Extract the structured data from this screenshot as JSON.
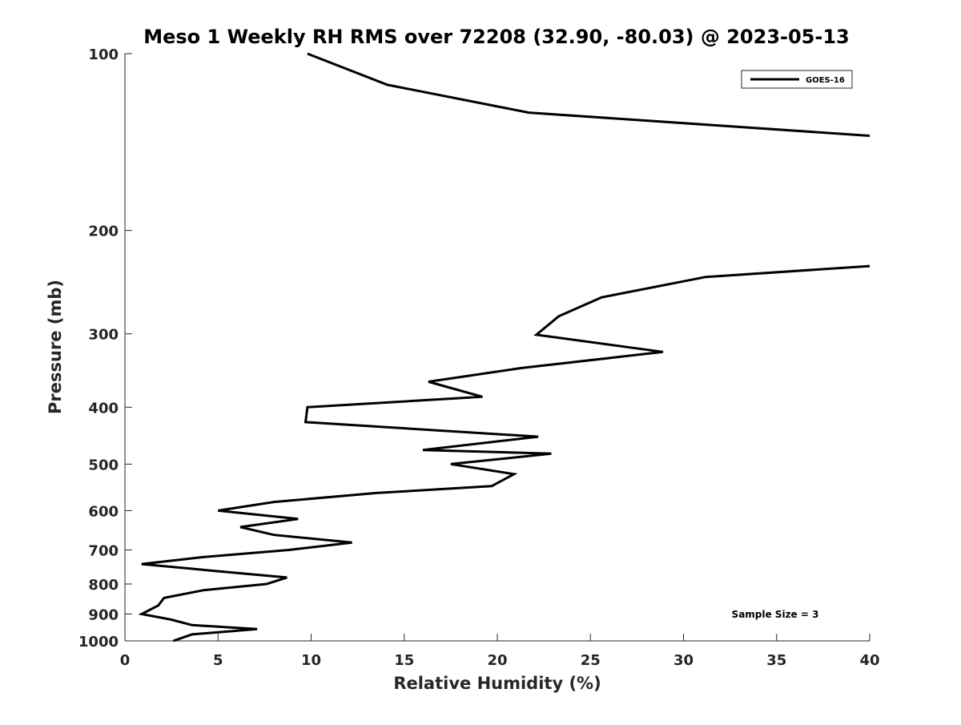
{
  "chart_data": {
    "type": "line",
    "title": "Meso 1 Weekly RH RMS over 72208 (32.90, -80.03) @ 2023-05-13",
    "xlabel": "Relative Humidity (%)",
    "ylabel": "Pressure (mb)",
    "xlim": [
      0,
      40
    ],
    "ylim": [
      1000,
      100
    ],
    "y_scale": "log",
    "y_reversed": true,
    "x_ticks": [
      0,
      5,
      10,
      15,
      20,
      25,
      30,
      35,
      40
    ],
    "y_ticks": [
      100,
      200,
      300,
      400,
      500,
      600,
      700,
      800,
      900,
      1000
    ],
    "grid": false,
    "legend_placement": "top-right",
    "line_color": "#000000",
    "annotation": "Sample Size = 3",
    "series": [
      {
        "name": "GOES-16",
        "segments": [
          [
            {
              "x": 9.8,
              "y": 100
            },
            {
              "x": 14.1,
              "y": 113
            },
            {
              "x": 21.7,
              "y": 126
            },
            {
              "x": 40.0,
              "y": 138
            }
          ],
          [
            {
              "x": 40.0,
              "y": 230
            },
            {
              "x": 31.2,
              "y": 240
            },
            {
              "x": 25.6,
              "y": 260
            },
            {
              "x": 23.3,
              "y": 280
            },
            {
              "x": 22.1,
              "y": 301
            },
            {
              "x": 28.9,
              "y": 322
            },
            {
              "x": 21.3,
              "y": 343
            },
            {
              "x": 16.3,
              "y": 362
            },
            {
              "x": 19.2,
              "y": 384
            },
            {
              "x": 9.8,
              "y": 400
            },
            {
              "x": 9.7,
              "y": 424
            },
            {
              "x": 22.2,
              "y": 449
            },
            {
              "x": 16.0,
              "y": 473
            },
            {
              "x": 22.9,
              "y": 480
            },
            {
              "x": 17.5,
              "y": 500
            },
            {
              "x": 20.9,
              "y": 520
            },
            {
              "x": 19.7,
              "y": 545
            },
            {
              "x": 13.5,
              "y": 560
            },
            {
              "x": 8.0,
              "y": 580
            },
            {
              "x": 5.0,
              "y": 600
            },
            {
              "x": 9.3,
              "y": 620
            },
            {
              "x": 6.2,
              "y": 640
            },
            {
              "x": 8.0,
              "y": 660
            },
            {
              "x": 12.2,
              "y": 680
            },
            {
              "x": 8.8,
              "y": 700
            },
            {
              "x": 4.2,
              "y": 720
            },
            {
              "x": 0.9,
              "y": 740
            },
            {
              "x": 4.8,
              "y": 760
            },
            {
              "x": 8.7,
              "y": 780
            },
            {
              "x": 7.6,
              "y": 800
            },
            {
              "x": 4.2,
              "y": 820
            },
            {
              "x": 2.1,
              "y": 845
            },
            {
              "x": 1.8,
              "y": 870
            },
            {
              "x": 0.9,
              "y": 900
            },
            {
              "x": 2.5,
              "y": 920
            },
            {
              "x": 3.6,
              "y": 940
            },
            {
              "x": 7.1,
              "y": 955
            },
            {
              "x": 3.6,
              "y": 975
            },
            {
              "x": 2.6,
              "y": 1000
            }
          ]
        ]
      }
    ]
  }
}
